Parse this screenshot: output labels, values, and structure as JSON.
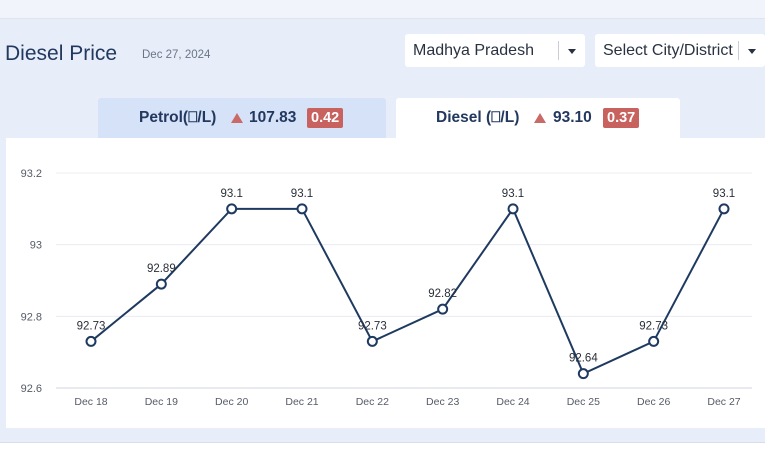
{
  "header": {
    "title": "Diesel Price",
    "date": "Dec 27, 2024",
    "state_select": "Madhya Pradesh",
    "city_select": "Select City/District"
  },
  "tabs": {
    "petrol": {
      "label": "Petrol(⎕/L)",
      "price": "107.83",
      "change": "0.42"
    },
    "diesel": {
      "label": "Diesel (⎕/L)",
      "price": "93.10",
      "change": "0.37"
    }
  },
  "colors": {
    "accent": "#23385f",
    "line": "#1f3a60",
    "up_arrow": "#c96a68",
    "badge": "#c7625f",
    "active_tab": "#ffffff",
    "inactive_tab": "#d6e2f8"
  },
  "icons": {
    "select_caret": "caret-down-icon",
    "price_trend": "triangle-up-icon"
  },
  "chart_data": {
    "type": "line",
    "categories": [
      "Dec 18",
      "Dec 19",
      "Dec 20",
      "Dec 21",
      "Dec 22",
      "Dec 23",
      "Dec 24",
      "Dec 25",
      "Dec 26",
      "Dec 27"
    ],
    "values": [
      92.73,
      92.89,
      93.1,
      93.1,
      92.73,
      92.82,
      93.1,
      92.64,
      92.73,
      93.1
    ],
    "point_labels": [
      "92.73",
      "92.89",
      "93.1",
      "93.1",
      "92.73",
      "92.82",
      "93.1",
      "92.64",
      "92.73",
      "93.1"
    ],
    "yticks": [
      92.6,
      92.8,
      93,
      93.2
    ],
    "ytick_labels": [
      "92.6",
      "92.8",
      "93",
      "93.2"
    ],
    "ylim": [
      92.6,
      93.2
    ],
    "grid": true,
    "legend": "none"
  }
}
